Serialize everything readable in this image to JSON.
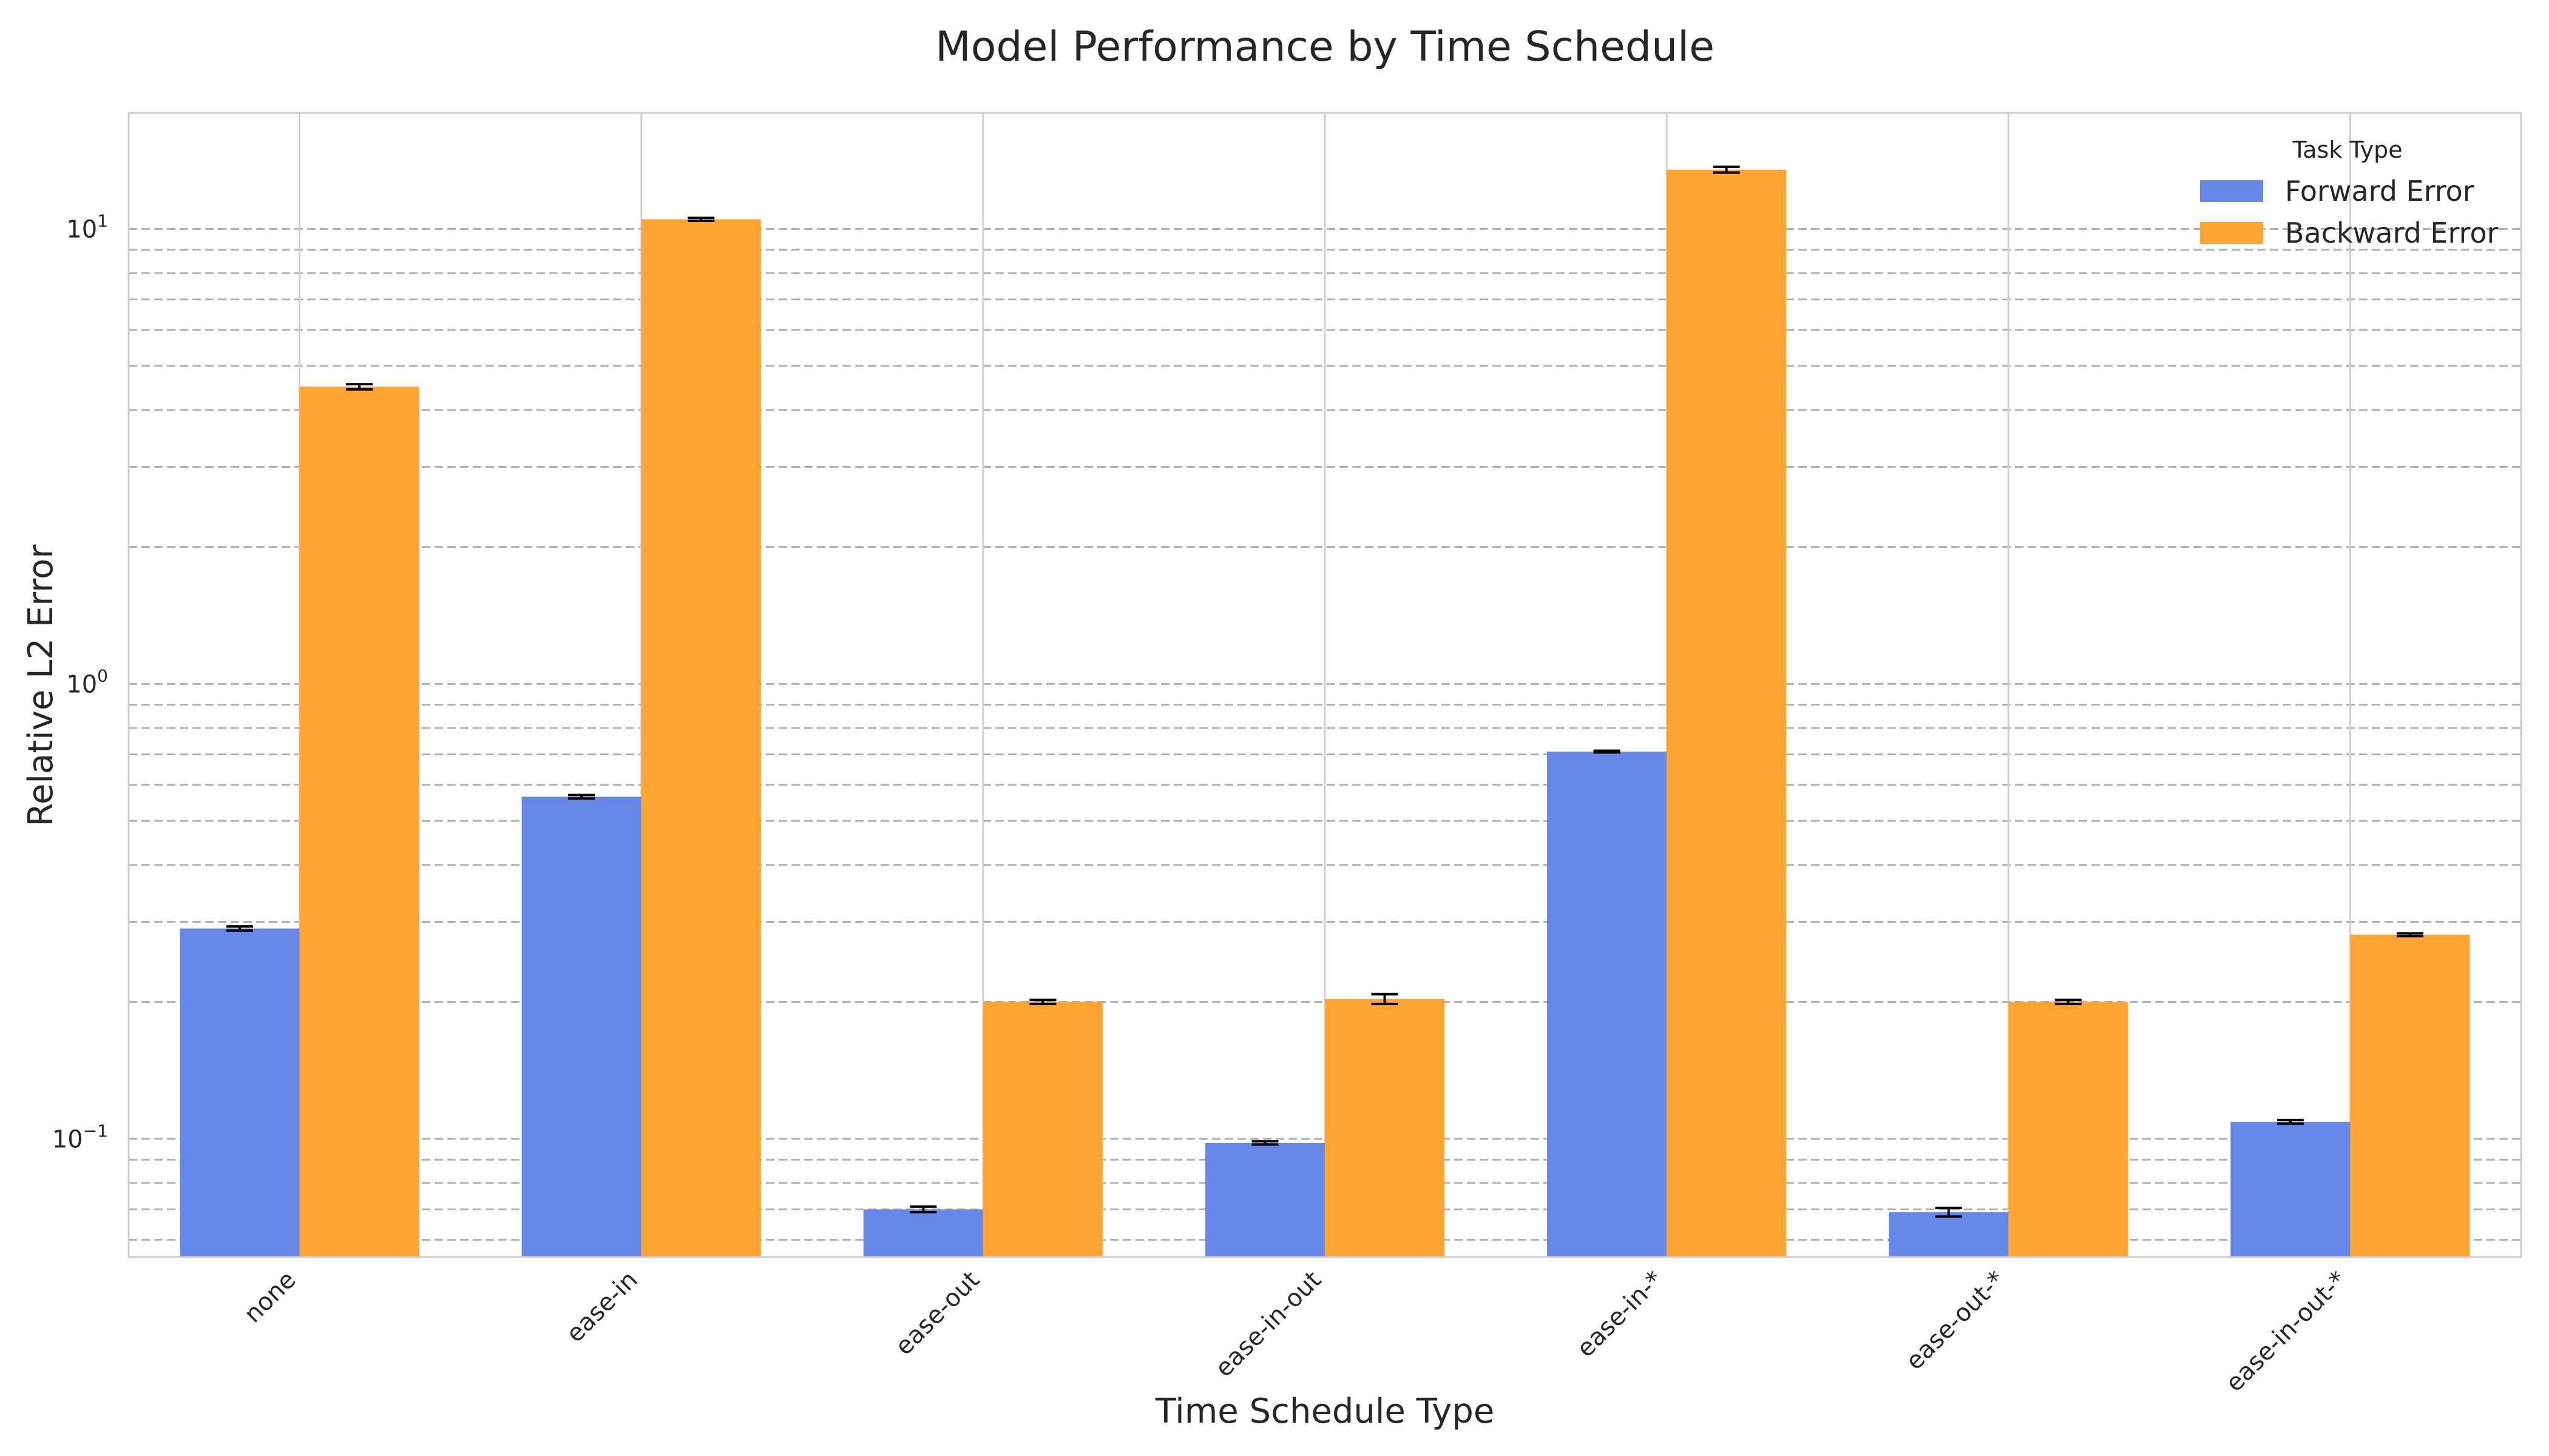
{
  "chart_data": {
    "type": "bar",
    "title": "Model Performance by Time Schedule",
    "xlabel": "Time Schedule Type",
    "ylabel": "Relative L2 Error",
    "yscale": "log",
    "ylim": [
      0.055,
      18
    ],
    "y_ticks": [
      {
        "value": 0.1,
        "base": "10",
        "exp": "−1"
      },
      {
        "value": 1,
        "base": "10",
        "exp": "0"
      },
      {
        "value": 10,
        "base": "10",
        "exp": "1"
      }
    ],
    "categories": [
      "none",
      "ease-in",
      "ease-out",
      "ease-in-out",
      "ease-in-*",
      "ease-out-*",
      "ease-in-out-*"
    ],
    "series": [
      {
        "name": "Forward Error",
        "color": "#6788e6",
        "values": [
          0.29,
          0.565,
          0.07,
          0.098,
          0.71,
          0.069,
          0.109
        ],
        "errors": [
          0.003,
          0.005,
          0.001,
          0.0008,
          0.003,
          0.0015,
          0.001
        ]
      },
      {
        "name": "Backward Error",
        "color": "#ffa333",
        "values": [
          4.5,
          10.5,
          0.2,
          0.203,
          13.5,
          0.2,
          0.281
        ],
        "errors": [
          0.06,
          0.08,
          0.002,
          0.005,
          0.2,
          0.002,
          0.002
        ]
      }
    ],
    "grid": true,
    "legend": {
      "title": "Task Type",
      "position": "top-right"
    }
  }
}
